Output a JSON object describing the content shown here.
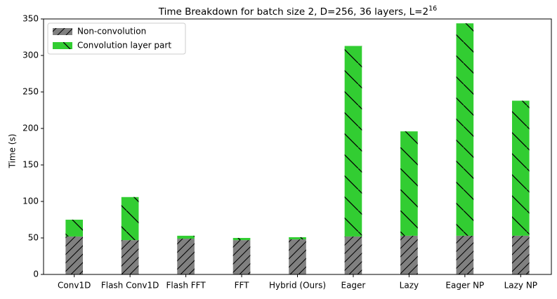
{
  "chart_data": {
    "type": "stacked_bar",
    "title": "Time Breakdown for batch size 2, D=256, 36 layers, L=2",
    "title_superscript": "16",
    "y_label": "Time (s)",
    "categories": [
      "Conv1D",
      "Flash Conv1D",
      "Flash FFT",
      "FFT",
      "Hybrid (Ours)",
      "Eager",
      "Lazy",
      "Eager NP",
      "Lazy NP"
    ],
    "series": [
      {
        "name": "Non-convolution",
        "color": "#808080",
        "hatch": "/",
        "values": [
          52,
          47,
          49,
          47,
          48,
          52,
          53,
          53,
          53
        ]
      },
      {
        "name": "Convolution layer part",
        "color": "#32cd32",
        "hatch": "\\",
        "values": [
          23,
          59,
          4,
          3,
          3,
          261,
          143,
          291,
          185
        ]
      }
    ],
    "ylim": [
      0,
      350
    ],
    "yticks": [
      0,
      50,
      100,
      150,
      200,
      250,
      300,
      350
    ],
    "legend": "upper left"
  }
}
